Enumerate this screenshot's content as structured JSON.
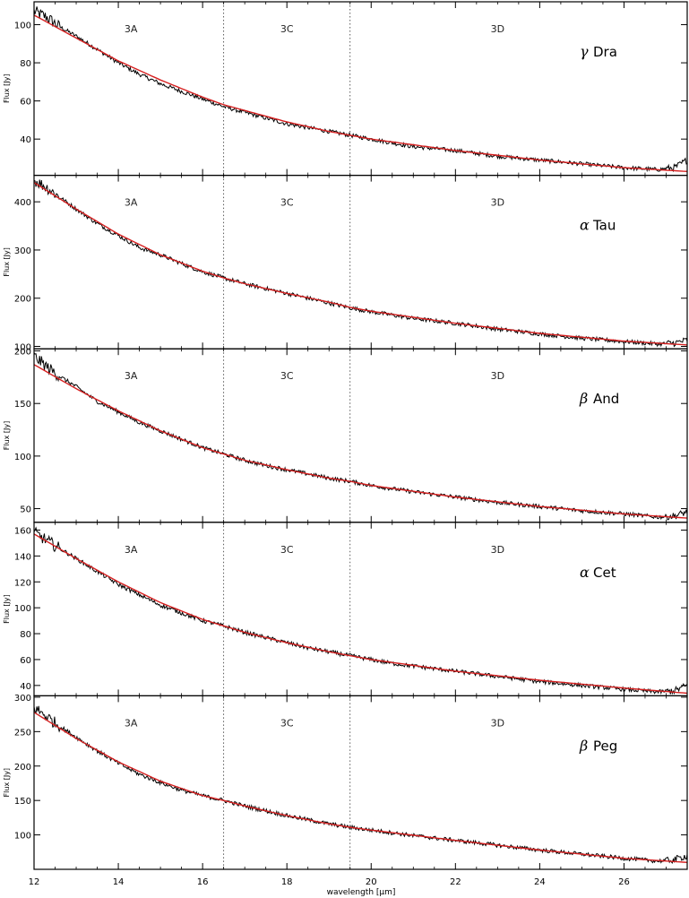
{
  "figure": {
    "xlabel": "wavelength [μm]",
    "ylabel": "Flux [Jy]"
  },
  "chart_data": [
    {
      "type": "line",
      "panel_label": {
        "symbol": "γ",
        "name": "Dra"
      },
      "segment_labels": [
        "3A",
        "3C",
        "3D"
      ],
      "segment_boundaries": [
        16.5,
        19.5
      ],
      "xlabel": "",
      "ylabel": "Flux [Jy]",
      "xlim": [
        12,
        27.5
      ],
      "ylim": [
        21,
        112
      ],
      "xticks": [
        12,
        14,
        16,
        18,
        20,
        22,
        24,
        26
      ],
      "yticks": [
        40,
        60,
        80,
        100
      ],
      "series": [
        {
          "color": "#000000",
          "style": "noisy",
          "x": [
            12.0,
            12.3,
            12.6,
            13.0,
            13.5,
            14.0,
            14.5,
            15.0,
            15.5,
            16.0,
            16.5,
            17.0,
            17.5,
            18.0,
            18.5,
            19.0,
            19.5,
            20.0,
            20.5,
            21.0,
            22.0,
            23.0,
            24.0,
            25.0,
            26.0,
            26.8,
            27.2,
            27.5
          ],
          "y": [
            107,
            104,
            99,
            94,
            87,
            80,
            74,
            69,
            65,
            61,
            57,
            54,
            51,
            48,
            46,
            44,
            42,
            40,
            38,
            36,
            34,
            31,
            29,
            27,
            25,
            24,
            25,
            29
          ]
        },
        {
          "color": "#d62020",
          "style": "smooth",
          "x": [
            12.0,
            13.0,
            14.0,
            15.0,
            16.0,
            16.5,
            17.0,
            18.0,
            19.0,
            19.5,
            20.0,
            22.0,
            24.0,
            26.0,
            27.5
          ],
          "y": [
            105,
            93,
            81,
            71,
            62,
            58,
            55,
            49,
            44,
            42,
            40,
            34,
            29,
            25,
            23
          ]
        }
      ]
    },
    {
      "type": "line",
      "panel_label": {
        "symbol": "α",
        "name": "Tau"
      },
      "segment_labels": [
        "3A",
        "3C",
        "3D"
      ],
      "segment_boundaries": [
        16.5,
        19.5
      ],
      "xlabel": "",
      "ylabel": "Flux [Jy]",
      "xlim": [
        12,
        27.5
      ],
      "ylim": [
        95,
        455
      ],
      "xticks": [
        12,
        14,
        16,
        18,
        20,
        22,
        24,
        26
      ],
      "yticks": [
        100,
        200,
        300,
        400
      ],
      "series": [
        {
          "color": "#000000",
          "style": "noisy",
          "x": [
            12.0,
            12.3,
            12.6,
            13.0,
            13.5,
            14.0,
            14.5,
            15.0,
            15.5,
            16.0,
            16.5,
            17.0,
            17.5,
            18.0,
            18.5,
            19.0,
            19.5,
            20.0,
            20.5,
            21.0,
            22.0,
            23.0,
            24.0,
            25.0,
            26.0,
            26.8,
            27.2,
            27.5
          ],
          "y": [
            445,
            430,
            410,
            385,
            355,
            330,
            305,
            290,
            272,
            255,
            242,
            230,
            220,
            210,
            200,
            190,
            180,
            172,
            165,
            158,
            148,
            136,
            126,
            117,
            110,
            105,
            107,
            113
          ]
        },
        {
          "color": "#d62020",
          "style": "smooth",
          "x": [
            12.0,
            13.0,
            14.0,
            15.0,
            16.0,
            16.5,
            17.0,
            18.0,
            19.0,
            19.5,
            20.0,
            22.0,
            24.0,
            26.0,
            27.5
          ],
          "y": [
            440,
            385,
            333,
            290,
            256,
            242,
            230,
            210,
            192,
            181,
            173,
            148,
            127,
            111,
            103
          ]
        }
      ]
    },
    {
      "type": "line",
      "panel_label": {
        "symbol": "β",
        "name": "And"
      },
      "segment_labels": [
        "3A",
        "3C",
        "3D"
      ],
      "segment_boundaries": [
        16.5,
        19.5
      ],
      "xlabel": "",
      "ylabel": "Flux [Jy]",
      "xlim": [
        12,
        27.5
      ],
      "ylim": [
        37,
        202
      ],
      "xticks": [
        12,
        14,
        16,
        18,
        20,
        22,
        24,
        26
      ],
      "yticks": [
        50,
        100,
        150,
        200
      ],
      "series": [
        {
          "color": "#000000",
          "style": "noisy",
          "x": [
            12.0,
            12.3,
            12.6,
            13.0,
            13.5,
            14.0,
            14.5,
            15.0,
            15.5,
            16.0,
            16.5,
            17.0,
            17.5,
            18.0,
            18.5,
            19.0,
            19.5,
            20.0,
            20.5,
            21.0,
            22.0,
            23.0,
            24.0,
            25.0,
            26.0,
            26.8,
            27.2,
            27.5
          ],
          "y": [
            195,
            185,
            176,
            166,
            152,
            142,
            132,
            124,
            116,
            108,
            102,
            96,
            91,
            87,
            83,
            79,
            76,
            72,
            69,
            66,
            61,
            56,
            52,
            48,
            45,
            42,
            43,
            47
          ]
        },
        {
          "color": "#d62020",
          "style": "smooth",
          "x": [
            12.0,
            13.0,
            14.0,
            15.0,
            16.0,
            16.5,
            17.0,
            18.0,
            19.0,
            19.5,
            20.0,
            22.0,
            24.0,
            26.0,
            27.5
          ],
          "y": [
            187,
            164,
            143,
            124,
            108,
            102,
            96,
            87,
            79,
            76,
            72,
            61,
            52,
            45,
            41
          ]
        }
      ]
    },
    {
      "type": "line",
      "panel_label": {
        "symbol": "α",
        "name": "Cet"
      },
      "segment_labels": [
        "3A",
        "3C",
        "3D"
      ],
      "segment_boundaries": [
        16.5,
        19.5
      ],
      "xlabel": "",
      "ylabel": "Flux [Jy]",
      "xlim": [
        12,
        27.5
      ],
      "ylim": [
        32,
        166
      ],
      "xticks": [
        12,
        14,
        16,
        18,
        20,
        22,
        24,
        26
      ],
      "yticks": [
        40,
        60,
        80,
        100,
        120,
        140,
        160
      ],
      "series": [
        {
          "color": "#000000",
          "style": "noisy",
          "x": [
            12.0,
            12.3,
            12.6,
            13.0,
            13.5,
            14.0,
            14.5,
            15.0,
            15.5,
            16.0,
            16.5,
            17.0,
            17.5,
            18.0,
            18.5,
            19.0,
            19.5,
            20.0,
            20.5,
            21.0,
            22.0,
            23.0,
            24.0,
            25.0,
            26.0,
            26.8,
            27.2,
            27.5
          ],
          "y": [
            158,
            152,
            146,
            138,
            128,
            118,
            110,
            102,
            96,
            90,
            86,
            81,
            77,
            73,
            69,
            66,
            63,
            60,
            57,
            55,
            51,
            47,
            43,
            40,
            37,
            35,
            36,
            40
          ]
        },
        {
          "color": "#d62020",
          "style": "smooth",
          "x": [
            12.0,
            13.0,
            14.0,
            15.0,
            16.0,
            16.5,
            17.0,
            18.0,
            19.0,
            19.5,
            20.0,
            22.0,
            24.0,
            26.0,
            27.5
          ],
          "y": [
            157,
            138,
            120,
            104,
            91,
            86,
            81,
            73,
            66,
            63,
            60,
            51,
            44,
            38,
            34
          ]
        }
      ]
    },
    {
      "type": "line",
      "panel_label": {
        "symbol": "β",
        "name": "Peg"
      },
      "segment_labels": [
        "3A",
        "3C",
        "3D"
      ],
      "segment_boundaries": [
        16.5,
        19.5
      ],
      "xlabel": "wavelength [μm]",
      "ylabel": "Flux [Jy]",
      "xlim": [
        12,
        27.5
      ],
      "ylim": [
        50,
        302
      ],
      "xticks": [
        12,
        14,
        16,
        18,
        20,
        22,
        24,
        26
      ],
      "xtick_labels": [
        "12",
        "14",
        "16",
        "18",
        "20",
        "22",
        "24",
        "26"
      ],
      "yticks": [
        100,
        150,
        200,
        250,
        300
      ],
      "series": [
        {
          "color": "#000000",
          "style": "noisy",
          "x": [
            12.0,
            12.3,
            12.6,
            13.0,
            13.5,
            14.0,
            14.5,
            15.0,
            15.5,
            16.0,
            16.5,
            17.0,
            17.5,
            18.0,
            18.5,
            19.0,
            19.5,
            20.0,
            20.5,
            21.0,
            22.0,
            23.0,
            24.0,
            25.0,
            26.0,
            26.8,
            27.2,
            27.5
          ],
          "y": [
            285,
            272,
            258,
            242,
            222,
            204,
            188,
            176,
            165,
            157,
            150,
            142,
            135,
            128,
            122,
            116,
            111,
            107,
            103,
            99,
            92,
            85,
            78,
            72,
            66,
            62,
            64,
            70
          ]
        },
        {
          "color": "#d62020",
          "style": "smooth",
          "x": [
            12.0,
            13.0,
            14.0,
            15.0,
            16.0,
            16.5,
            17.0,
            18.0,
            19.0,
            19.5,
            20.0,
            22.0,
            24.0,
            26.0,
            27.5
          ],
          "y": [
            278,
            240,
            206,
            178,
            157,
            150,
            142,
            128,
            116,
            111,
            107,
            92,
            78,
            66,
            60
          ]
        }
      ]
    }
  ]
}
